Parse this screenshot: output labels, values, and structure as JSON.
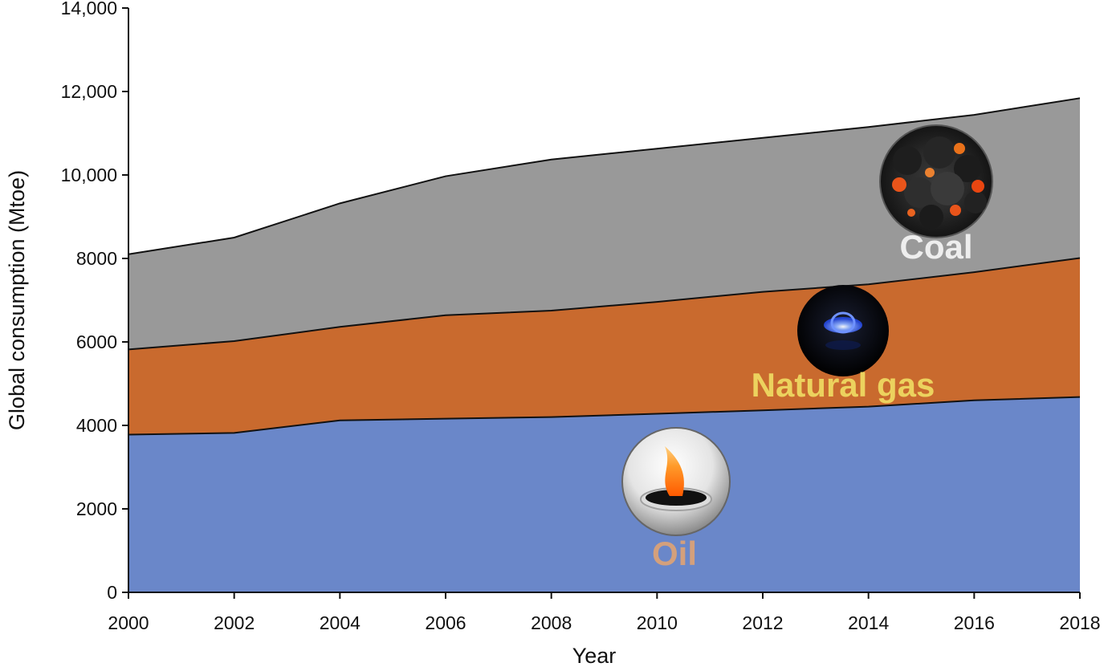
{
  "chart_data": {
    "type": "area",
    "stacked": true,
    "x": [
      2000,
      2002,
      2004,
      2006,
      2008,
      2010,
      2012,
      2014,
      2016,
      2018
    ],
    "x_tick_labels": [
      "2000",
      "2002",
      "2004",
      "2006",
      "2008",
      "2010",
      "2012",
      "2014",
      "2016",
      "2018"
    ],
    "y_tick_values": [
      0,
      2000,
      4000,
      6000,
      8000,
      10000,
      12000,
      14000
    ],
    "y_tick_labels": [
      "0",
      "2000",
      "4000",
      "6000",
      "8000",
      "10,000",
      "12,000",
      "14,000"
    ],
    "xlabel": "Year",
    "ylabel": "Global consumption (Mtoe)",
    "xlim": [
      2000,
      2018
    ],
    "ylim": [
      0,
      14000
    ],
    "grid": false,
    "series": [
      {
        "name": "Oil",
        "color": "#6a87c9",
        "label_color": "#d4a07c",
        "icon": "oil-flame-icon",
        "values": [
          3780,
          3820,
          4120,
          4160,
          4200,
          4280,
          4360,
          4450,
          4600,
          4680
        ]
      },
      {
        "name": "Natural gas",
        "color": "#c96a2e",
        "label_color": "#ecd25e",
        "icon": "gas-burner-icon",
        "values": [
          2040,
          2200,
          2240,
          2480,
          2550,
          2680,
          2840,
          2930,
          3070,
          3330
        ]
      },
      {
        "name": "Coal",
        "color": "#999999",
        "label_color": "#eeeeee",
        "icon": "coal-icon",
        "values": [
          2280,
          2480,
          2960,
          3330,
          3620,
          3670,
          3690,
          3770,
          3770,
          3830
        ]
      }
    ]
  }
}
